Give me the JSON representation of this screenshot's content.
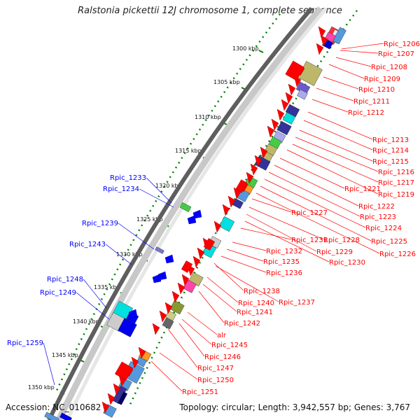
{
  "title": "Ralstonia pickettii 12J chromosome 1, complete sequence",
  "accession_label": "Accession:",
  "accession": "NC_010682",
  "topology_label": "Topology:",
  "topology": "circular",
  "length_label": "Length:",
  "length": "3,942,557 bp",
  "genes_label": "Genes:",
  "genes": "3,767",
  "colors": {
    "forward_gene": "#ff0000",
    "reverse_gene": "#0000ff",
    "ruler_ticks": "#008000",
    "backbone": "#888888"
  },
  "kbp_ticks": [
    "1300 kbp",
    "1305 kbp",
    "1310 kbp",
    "1315 kbp",
    "1320 kbp",
    "1325 kbp",
    "1330 kbp",
    "1335 kbp",
    "1340 kbp",
    "1345 kbp",
    "1350 kbp"
  ],
  "right_labels": [
    "Rpic_1206",
    "Rpic_1207",
    "Rpic_1208",
    "Rpic_1209",
    "Rpic_1210",
    "Rpic_1211",
    "Rpic_1212",
    "Rpic_1213",
    "Rpic_1214",
    "Rpic_1215",
    "Rpic_1216",
    "Rpic_1217",
    "Rpic_1219",
    "Rpic_1221",
    "Rpic_1222",
    "Rpic_1223",
    "Rpic_1224",
    "Rpic_1225",
    "Rpic_1226",
    "Rpic_1227",
    "Rpic_1228",
    "Rpic_1229",
    "Rpic_1230",
    "Rpic_1231",
    "Rpic_1232",
    "Rpic_1235",
    "Rpic_1236",
    "Rpic_1238",
    "Rpic_1237",
    "Rpic_1240",
    "Rpic_1241",
    "Rpic_1242",
    "alr",
    "Rpic_1245",
    "Rpic_1246",
    "Rpic_1247",
    "Rpic_1250",
    "Rpic_1251"
  ],
  "left_labels": [
    "Rpic_1233",
    "Rpic_1234",
    "Rpic_1239",
    "Rpic_1243",
    "Rpic_1248",
    "Rpic_1249",
    "Rpic_1259"
  ]
}
